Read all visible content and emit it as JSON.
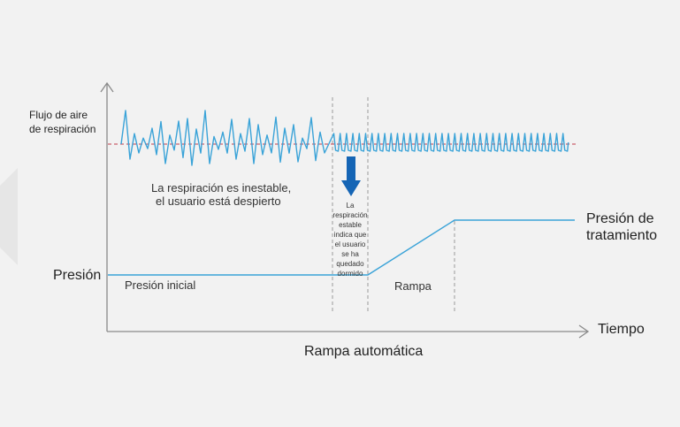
{
  "labels": {
    "flow_line1": "Flujo de aire",
    "flow_line2": "de respiración",
    "pressure": "Presión",
    "initial_pressure": "Presión inicial",
    "unstable_line1": "La respiración es inestable,",
    "unstable_line2": "el usuario está despierto",
    "stable_lines": [
      "La",
      "respiración",
      "estable",
      "indica que",
      "el usuario",
      "se ha",
      "quedado",
      "dormido"
    ],
    "ramp": "Rampa",
    "treatment_line1": "Presión de",
    "treatment_line2": "tratamiento",
    "time": "Tiempo",
    "caption": "Rampa automática"
  },
  "colors": {
    "background": "#f2f2f2",
    "axis": "#8a8a8a",
    "signal": "#3aa3d8",
    "baseline": "#c0394b",
    "arrow": "#1565b5",
    "guide": "#999999",
    "panel": "#e8e8e8"
  },
  "icons": {
    "stable_breathing_marker": "down-arrow-icon"
  }
}
